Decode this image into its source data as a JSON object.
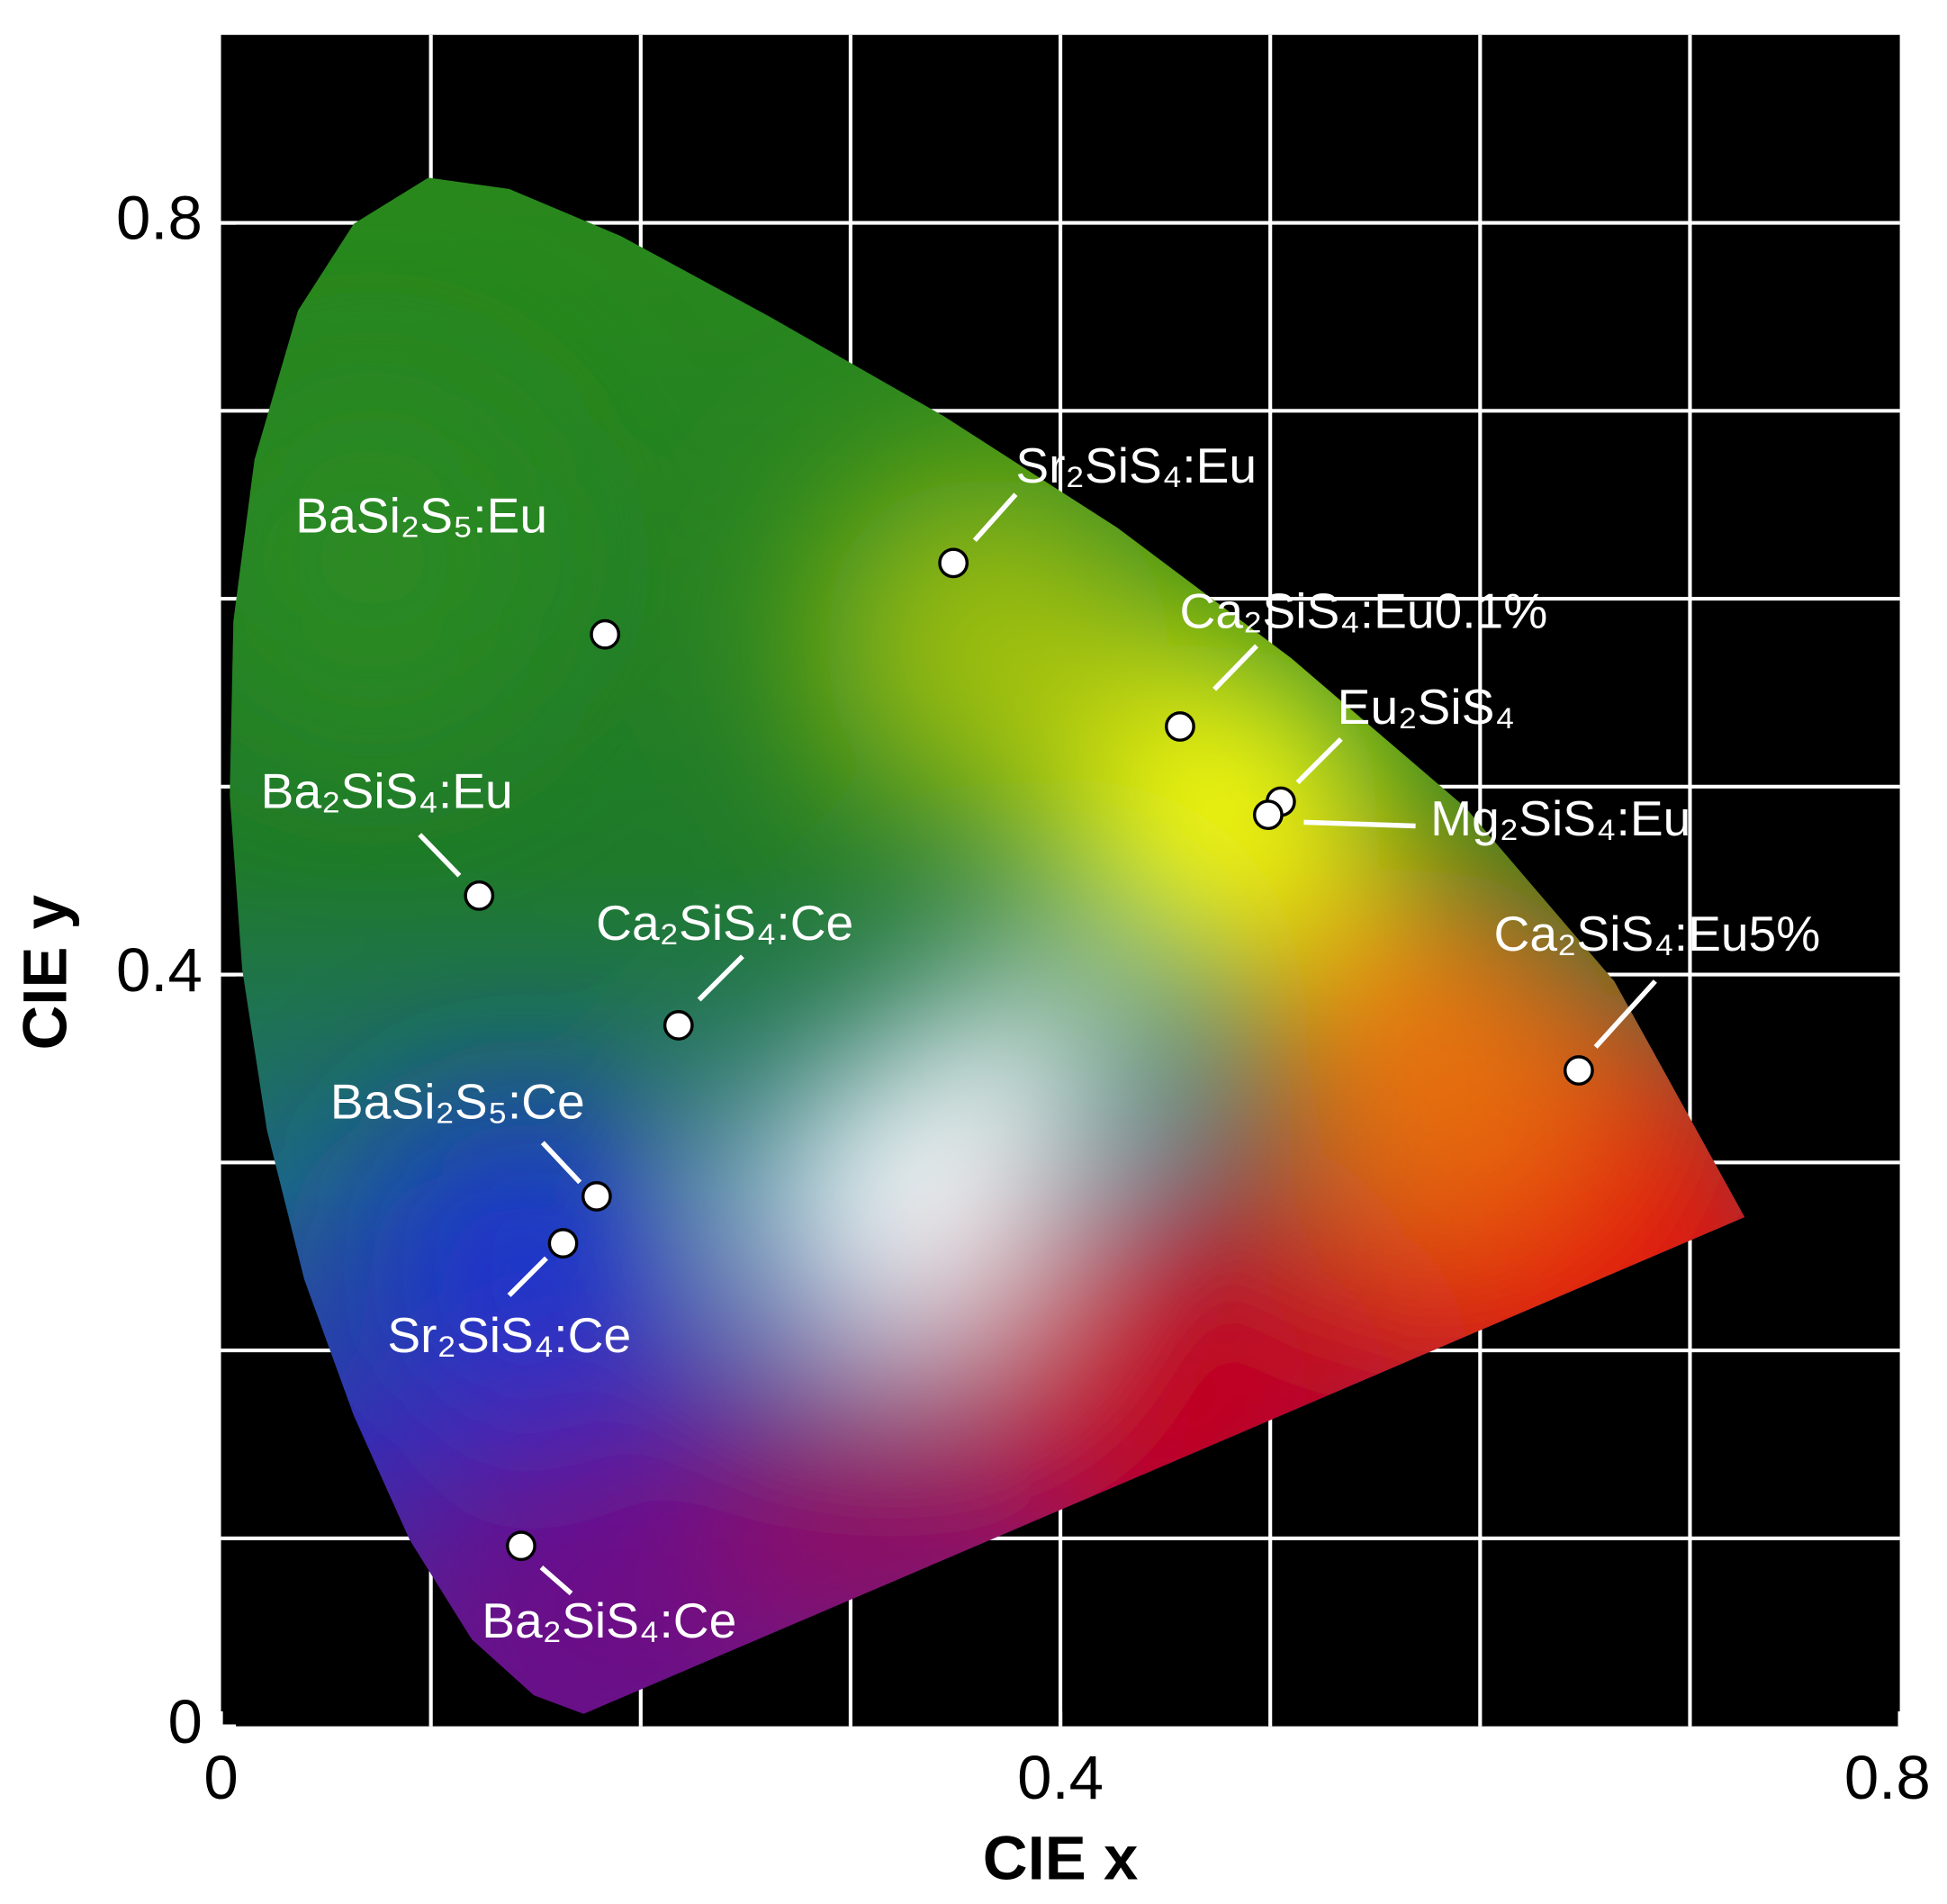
{
  "chart_data": {
    "type": "scatter",
    "xlabel": "CIE x",
    "ylabel": "CIE y",
    "xlim": [
      0,
      0.8
    ],
    "ylim": [
      0,
      0.9
    ],
    "xticks": [
      0,
      0.4,
      0.8
    ],
    "yticks": [
      0,
      0.4,
      0.8
    ],
    "x_gridlines": [
      0.1,
      0.2,
      0.3,
      0.4,
      0.5,
      0.6,
      0.7
    ],
    "y_gridlines": [
      0.1,
      0.2,
      0.3,
      0.4,
      0.5,
      0.6,
      0.7,
      0.8
    ],
    "grid": true,
    "grid_color": "#ffffff",
    "background": "#000000",
    "marker_color": "#ffffff",
    "marker_edge": "#000000",
    "series": [
      {
        "name": "BaSi₂S₅:Eu",
        "x": [
          0.183
        ],
        "values": [
          0.581
        ]
      },
      {
        "name": "Sr₂SiS₄:Eu",
        "x": [
          0.349
        ],
        "values": [
          0.619
        ]
      },
      {
        "name": "Ca₂SiS₄:Eu0.1%",
        "x": [
          0.457
        ],
        "values": [
          0.532
        ]
      },
      {
        "name": "Eu₂SiS₄",
        "x": [
          0.505
        ],
        "values": [
          0.492
        ]
      },
      {
        "name": "Mg₂SiS₄:Eu",
        "x": [
          0.499
        ],
        "values": [
          0.485
        ]
      },
      {
        "name": "Ca₂SiS₄:Eu5%",
        "x": [
          0.647
        ],
        "values": [
          0.349
        ]
      },
      {
        "name": "Ba₂SiS₄:Eu",
        "x": [
          0.123
        ],
        "values": [
          0.442
        ]
      },
      {
        "name": "Ca₂SiS₄:Ce",
        "x": [
          0.218
        ],
        "values": [
          0.373
        ]
      },
      {
        "name": "BaSi₂S₅:Ce",
        "x": [
          0.179
        ],
        "values": [
          0.282
        ]
      },
      {
        "name": "Sr₂SiS₄:Ce",
        "x": [
          0.163
        ],
        "values": [
          0.257
        ]
      },
      {
        "name": "Ba₂SiS₄:Ce",
        "x": [
          0.143
        ],
        "values": [
          0.096
        ]
      }
    ]
  }
}
